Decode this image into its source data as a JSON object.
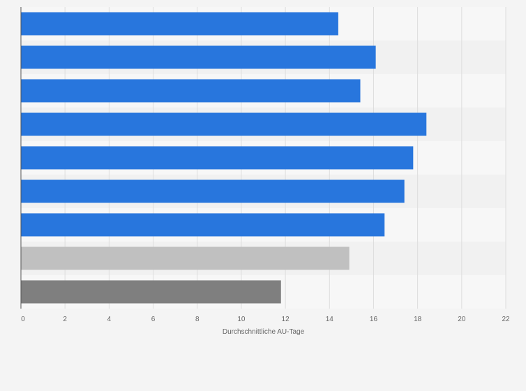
{
  "chart_data": {
    "type": "bar",
    "orientation": "horizontal",
    "title": "",
    "xlabel": "Durchschnittliche AU-Tage",
    "ylabel": "",
    "xlim": [
      0,
      22
    ],
    "ticks": [
      0,
      2,
      4,
      6,
      8,
      10,
      12,
      14,
      16,
      18,
      20,
      22
    ],
    "tick_labels": [
      "0",
      "2",
      "4",
      "6",
      "8",
      "10",
      "12",
      "14",
      "16",
      "18",
      "20",
      "22"
    ],
    "grid": true,
    "legend": "none",
    "categories": [
      "",
      "",
      "",
      "",
      "",
      "",
      "",
      "",
      ""
    ],
    "values": [
      14.4,
      16.1,
      15.4,
      18.4,
      17.8,
      17.4,
      16.5,
      14.9,
      11.8
    ],
    "colors": [
      "#2876dd",
      "#2876dd",
      "#2876dd",
      "#2876dd",
      "#2876dd",
      "#2876dd",
      "#2876dd",
      "#c0c0c0",
      "#7f7f7f"
    ]
  },
  "colors": {
    "background": "#f4f4f4",
    "band_light": "#f7f7f7",
    "band_dark": "#f1f1f1",
    "grid": "#dddddd",
    "axis": "#555555",
    "text": "#666666"
  }
}
